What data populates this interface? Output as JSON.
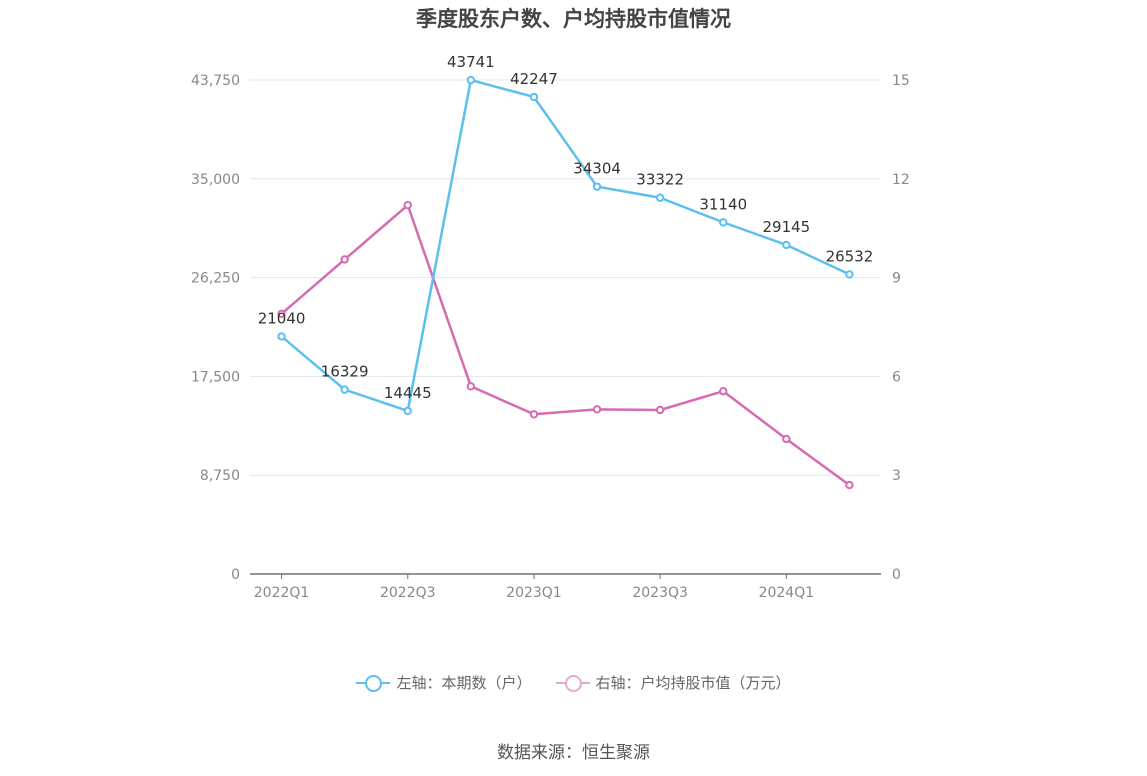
{
  "chart_data": {
    "type": "line",
    "title": "季度股东户数、户均持股市值情况",
    "categories": [
      "2022Q1",
      "2022Q2",
      "2022Q3",
      "2022Q4",
      "2023Q1",
      "2023Q2",
      "2023Q3",
      "2023Q4",
      "2024Q1",
      "2024Q2"
    ],
    "x_tick_labels": [
      "2022Q1",
      "2022Q3",
      "2023Q1",
      "2023Q3",
      "2024Q1"
    ],
    "left_axis": {
      "ticks": [
        "0",
        "8,750",
        "17,500",
        "26,250",
        "35,000",
        "43,750"
      ],
      "ylim": [
        0,
        43750
      ]
    },
    "right_axis": {
      "ticks": [
        "0",
        "3",
        "6",
        "9",
        "12",
        "15"
      ],
      "ylim": [
        0,
        15
      ]
    },
    "series": [
      {
        "name": "左轴：本期数（户）",
        "axis": "left",
        "color": "#5bc0ee",
        "values": [
          21040,
          16329,
          14445,
          43741,
          42247,
          34304,
          33322,
          31140,
          29145,
          26532
        ],
        "labels": [
          "21040",
          "16329",
          "14445",
          "43741",
          "42247",
          "34304",
          "33322",
          "31140",
          "29145",
          "26532"
        ]
      },
      {
        "name": "右轴：户均持股市值（万元）",
        "axis": "right",
        "color": "#d56bb0",
        "values": [
          7.9,
          9.55,
          11.2,
          5.7,
          4.85,
          5.0,
          4.98,
          5.55,
          4.1,
          2.7
        ]
      }
    ],
    "grid": true,
    "legend_position": "bottom"
  },
  "source_text": "数据来源：恒生聚源"
}
